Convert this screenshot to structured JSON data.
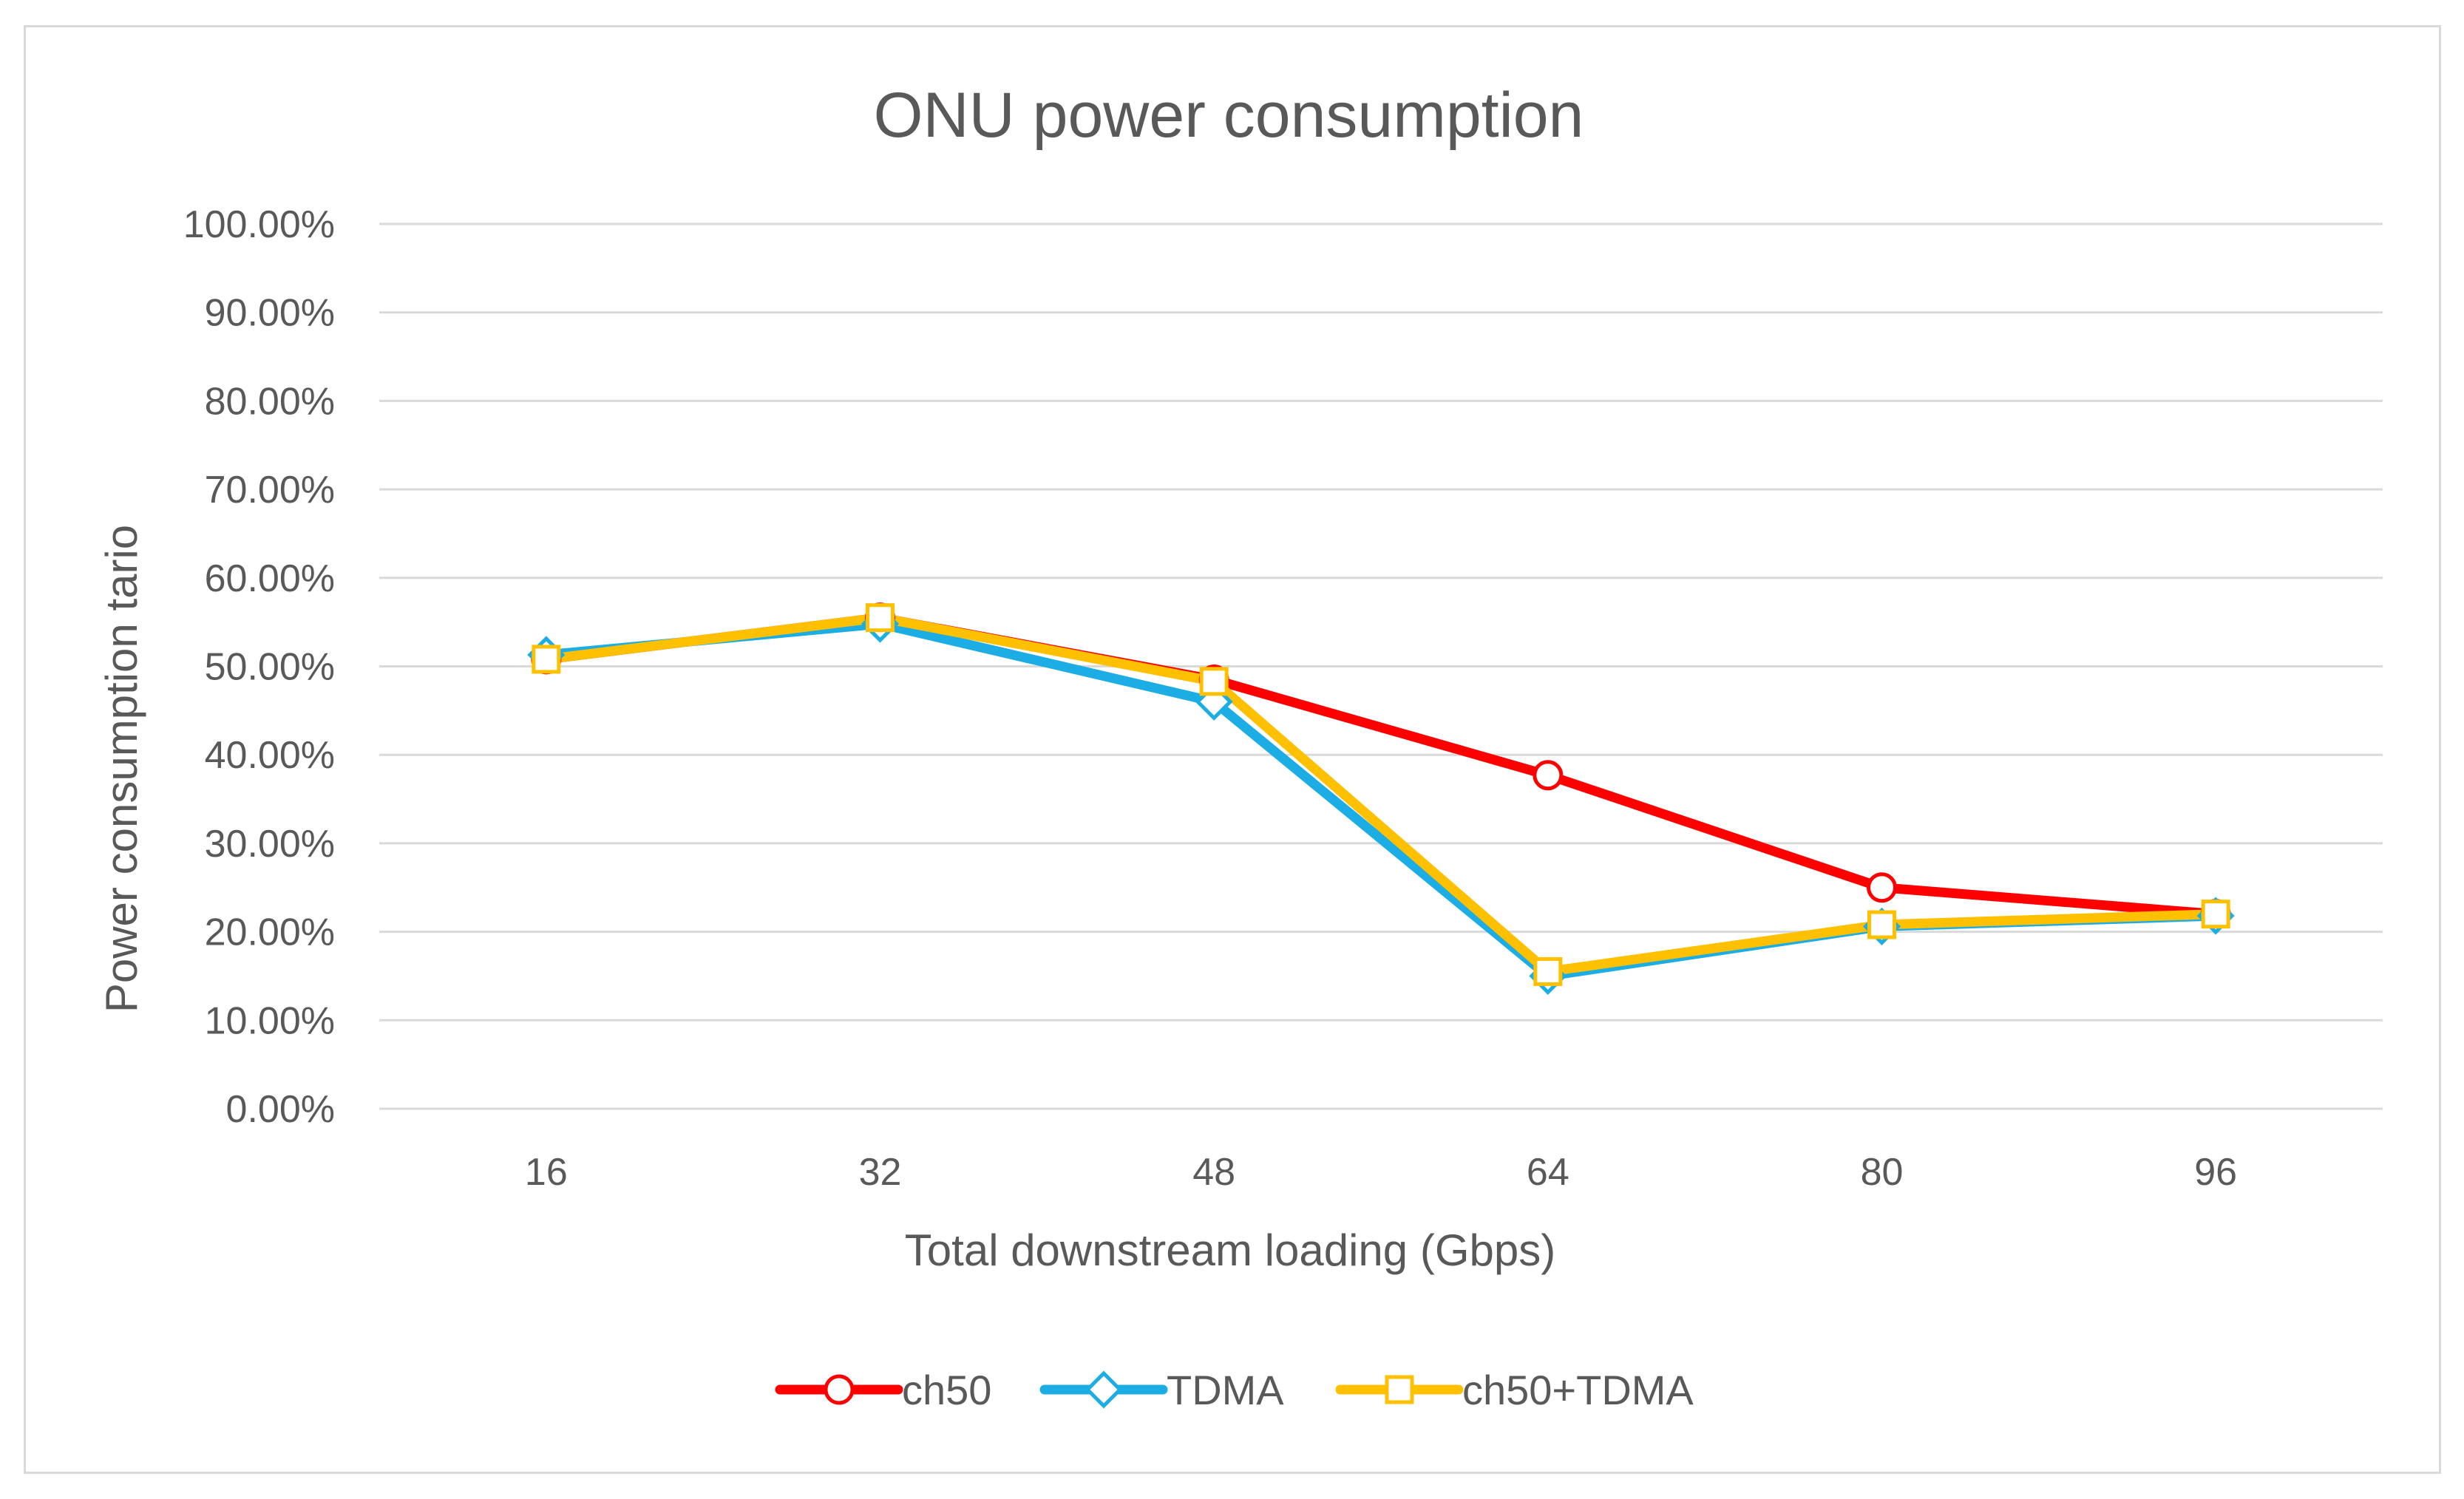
{
  "chart_data": {
    "type": "line",
    "title": "ONU power consumption",
    "xlabel": "Total downstream loading (Gbps)",
    "ylabel": "Power consumption tario",
    "categories": [
      "16",
      "32",
      "48",
      "64",
      "80",
      "96"
    ],
    "ylim": [
      0,
      1
    ],
    "yticks": [
      "0.00%",
      "10.00%",
      "20.00%",
      "30.00%",
      "40.00%",
      "50.00%",
      "60.00%",
      "70.00%",
      "80.00%",
      "90.00%",
      "100.00%"
    ],
    "grid": true,
    "legend_position": "bottom",
    "series": [
      {
        "name": "ch50",
        "color": "#ff0000",
        "marker": "circle",
        "values": [
          0.508,
          0.555,
          0.485,
          0.377,
          0.25,
          0.22
        ]
      },
      {
        "name": "TDMA",
        "color": "#1cade4",
        "marker": "diamond",
        "values": [
          0.513,
          0.548,
          0.46,
          0.15,
          0.206,
          0.218
        ]
      },
      {
        "name": "ch50+TDMA",
        "color": "#ffc000",
        "marker": "square",
        "values": [
          0.508,
          0.555,
          0.483,
          0.155,
          0.208,
          0.22
        ]
      }
    ]
  }
}
